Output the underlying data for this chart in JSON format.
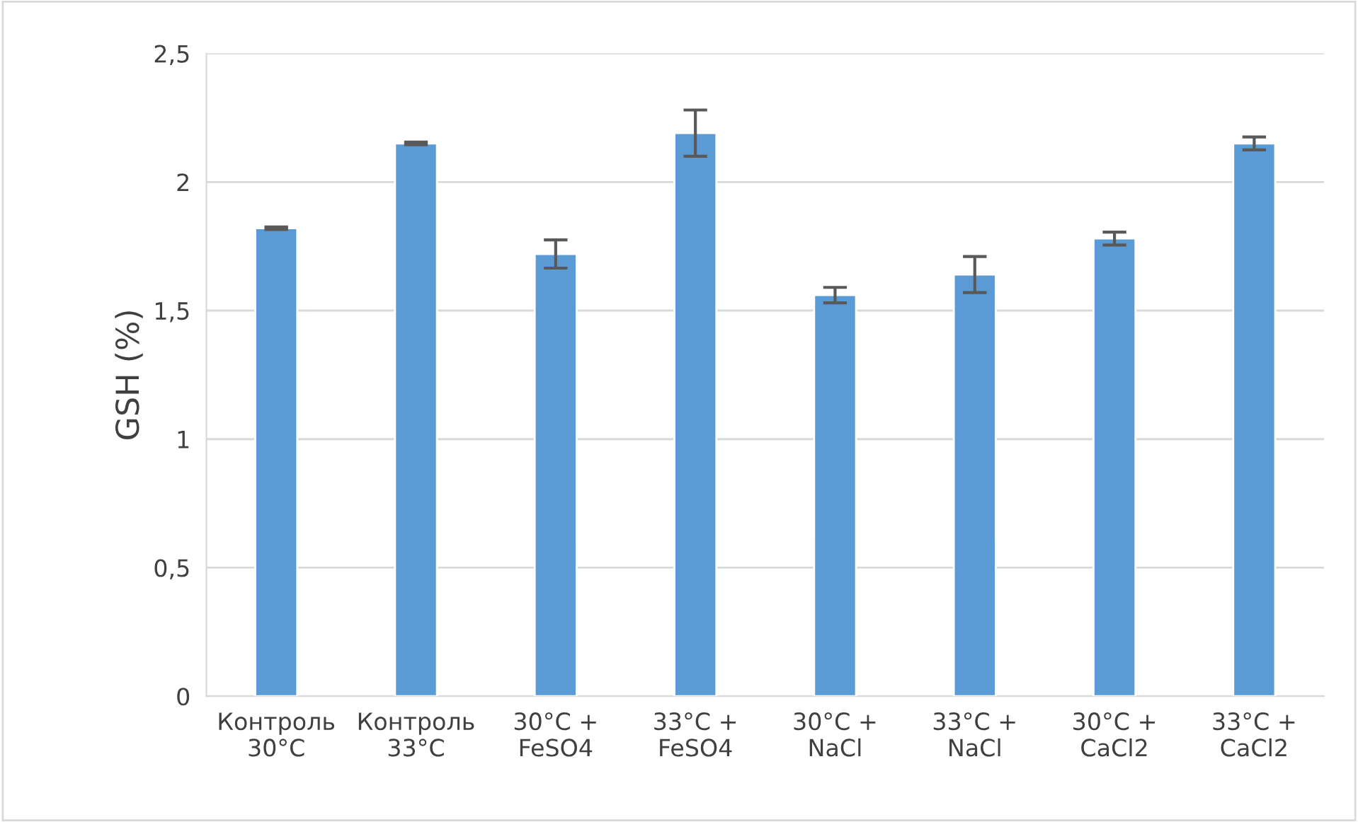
{
  "chart_data": {
    "type": "bar",
    "ylabel": "GSH (%)",
    "categories": [
      "Контроль\n30°C",
      "Контроль\n33°C",
      "30°C +\nFeSO4",
      "33°C +\nFeSO4",
      "30°C +\nNaCl",
      "33°C +\nNaCl",
      "30°C +\nCaCl2",
      "33°C +\nCaCl2"
    ],
    "values": [
      1.82,
      2.15,
      1.72,
      2.19,
      1.56,
      1.64,
      1.78,
      2.15
    ],
    "errors": [
      0.005,
      0.005,
      0.055,
      0.09,
      0.03,
      0.07,
      0.025,
      0.025
    ],
    "color": "#5b9bd5",
    "ylim": [
      0,
      2.5
    ],
    "yticks": [
      {
        "value": 0,
        "label": "0"
      },
      {
        "value": 0.5,
        "label": "0,5"
      },
      {
        "value": 1,
        "label": "1"
      },
      {
        "value": 1.5,
        "label": "1,5"
      },
      {
        "value": 2,
        "label": "2"
      },
      {
        "value": 2.5,
        "label": "2,5"
      }
    ],
    "grid": "y",
    "legend": false
  }
}
